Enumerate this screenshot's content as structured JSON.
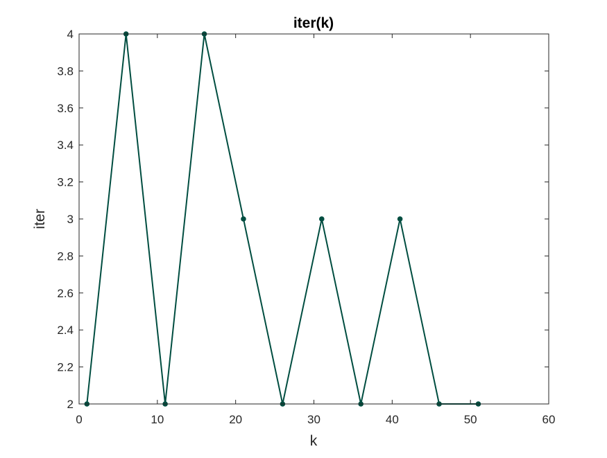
{
  "chart_data": {
    "type": "line",
    "title": "iter(k)",
    "xlabel": "k",
    "ylabel": "iter",
    "xlim": [
      0,
      60
    ],
    "ylim": [
      2,
      4
    ],
    "xticks": [
      "0",
      "10",
      "20",
      "30",
      "40",
      "50",
      "60"
    ],
    "yticks": [
      "2",
      "2.2",
      "2.4",
      "2.6",
      "2.8",
      "3",
      "3.2",
      "3.4",
      "3.6",
      "3.8",
      "4"
    ],
    "grid": false,
    "series": [
      {
        "x": [
          1,
          6,
          11,
          16,
          21,
          26,
          31,
          36,
          41,
          46,
          51
        ],
        "y": [
          2,
          4,
          2,
          4,
          3,
          2,
          3,
          2,
          3,
          2,
          2
        ],
        "color": "#004d40",
        "marker": "dot"
      }
    ]
  }
}
